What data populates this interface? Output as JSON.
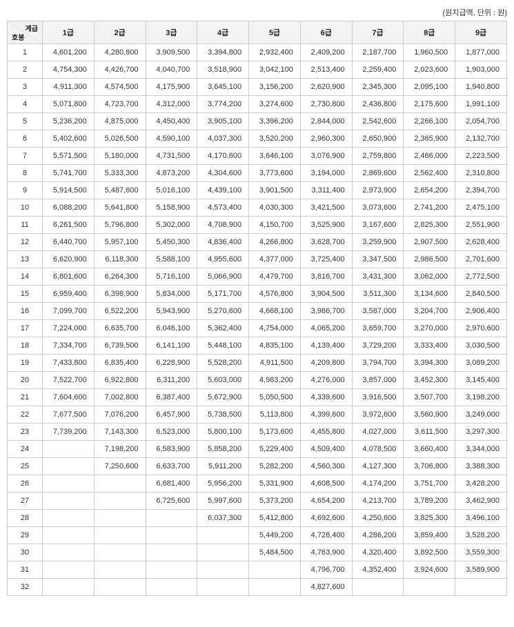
{
  "caption": "(원지급액, 단위 : 원)",
  "diag_header": {
    "top": "계급",
    "bottom": "호봉"
  },
  "columns": [
    "1급",
    "2급",
    "3급",
    "4급",
    "5급",
    "6급",
    "7급",
    "8급",
    "9급"
  ],
  "rows": [
    {
      "step": "1",
      "v": [
        "4,601,200",
        "4,280,800",
        "3,909,500",
        "3,394,800",
        "2,932,400",
        "2,409,200",
        "2,187,700",
        "1,960,500",
        "1,877,000"
      ]
    },
    {
      "step": "2",
      "v": [
        "4,754,300",
        "4,426,700",
        "4,040,700",
        "3,518,900",
        "3,042,100",
        "2,513,400",
        "2,259,400",
        "2,023,600",
        "1,903,000"
      ]
    },
    {
      "step": "3",
      "v": [
        "4,911,300",
        "4,574,500",
        "4,175,900",
        "3,645,100",
        "3,156,200",
        "2,620,900",
        "2,345,300",
        "2,095,100",
        "1,940,800"
      ]
    },
    {
      "step": "4",
      "v": [
        "5,071,800",
        "4,723,700",
        "4,312,000",
        "3,774,200",
        "3,274,600",
        "2,730,800",
        "2,436,800",
        "2,175,600",
        "1,991,100"
      ]
    },
    {
      "step": "5",
      "v": [
        "5,236,200",
        "4,875,000",
        "4,450,400",
        "3,905,100",
        "3,396,200",
        "2,844,000",
        "2,542,600",
        "2,266,100",
        "2,054,700"
      ]
    },
    {
      "step": "6",
      "v": [
        "5,402,600",
        "5,026,500",
        "4,590,100",
        "4,037,300",
        "3,520,200",
        "2,960,300",
        "2,650,900",
        "2,365,900",
        "2,132,700"
      ]
    },
    {
      "step": "7",
      "v": [
        "5,571,500",
        "5,180,000",
        "4,731,500",
        "4,170,600",
        "3,646,100",
        "3,076,900",
        "2,759,800",
        "2,466,000",
        "2,223,500"
      ]
    },
    {
      "step": "8",
      "v": [
        "5,741,700",
        "5,333,300",
        "4,873,200",
        "4,304,600",
        "3,773,600",
        "3,194,000",
        "2,869,600",
        "2,562,400",
        "2,310,800"
      ]
    },
    {
      "step": "9",
      "v": [
        "5,914,500",
        "5,487,600",
        "5,016,100",
        "4,439,100",
        "3,901,500",
        "3,311,400",
        "2,973,900",
        "2,654,200",
        "2,394,700"
      ]
    },
    {
      "step": "10",
      "v": [
        "6,088,200",
        "5,641,800",
        "5,158,900",
        "4,573,400",
        "4,030,300",
        "3,421,500",
        "3,073,600",
        "2,741,200",
        "2,475,100"
      ]
    },
    {
      "step": "11",
      "v": [
        "6,261,500",
        "5,796,800",
        "5,302,000",
        "4,708,900",
        "4,150,700",
        "3,525,900",
        "3,167,600",
        "2,825,300",
        "2,551,900"
      ]
    },
    {
      "step": "12",
      "v": [
        "6,440,700",
        "5,957,100",
        "5,450,300",
        "4,836,400",
        "4,266,800",
        "3,628,700",
        "3,259,900",
        "2,907,500",
        "2,628,400"
      ]
    },
    {
      "step": "13",
      "v": [
        "6,620,900",
        "6,118,300",
        "5,588,100",
        "4,955,600",
        "4,377,000",
        "3,725,400",
        "3,347,500",
        "2,986,500",
        "2,701,600"
      ]
    },
    {
      "step": "14",
      "v": [
        "6,801,600",
        "6,264,300",
        "5,716,100",
        "5,066,900",
        "4,479,700",
        "3,816,700",
        "3,431,300",
        "3,062,000",
        "2,772,500"
      ]
    },
    {
      "step": "15",
      "v": [
        "6,959,400",
        "6,398,900",
        "5,834,000",
        "5,171,700",
        "4,576,800",
        "3,904,500",
        "3,511,300",
        "3,134,600",
        "2,840,500"
      ]
    },
    {
      "step": "16",
      "v": [
        "7,099,700",
        "6,522,200",
        "5,943,900",
        "5,270,600",
        "4,668,100",
        "3,986,700",
        "3,587,000",
        "3,204,700",
        "2,906,400"
      ]
    },
    {
      "step": "17",
      "v": [
        "7,224,000",
        "6,635,700",
        "6,046,100",
        "5,362,400",
        "4,754,000",
        "4,065,200",
        "3,659,700",
        "3,270,000",
        "2,970,600"
      ]
    },
    {
      "step": "18",
      "v": [
        "7,334,700",
        "6,739,500",
        "6,141,100",
        "5,448,100",
        "4,835,100",
        "4,139,400",
        "3,729,200",
        "3,333,400",
        "3,030,500"
      ]
    },
    {
      "step": "19",
      "v": [
        "7,433,800",
        "6,835,400",
        "6,228,900",
        "5,528,200",
        "4,911,500",
        "4,209,800",
        "3,794,700",
        "3,394,300",
        "3,089,200"
      ]
    },
    {
      "step": "20",
      "v": [
        "7,522,700",
        "6,922,800",
        "6,311,200",
        "5,603,000",
        "4,983,200",
        "4,276,000",
        "3,857,000",
        "3,452,300",
        "3,145,400"
      ]
    },
    {
      "step": "21",
      "v": [
        "7,604,600",
        "7,002,800",
        "6,387,400",
        "5,672,900",
        "5,050,500",
        "4,339,600",
        "3,916,500",
        "3,507,700",
        "3,198,200"
      ]
    },
    {
      "step": "22",
      "v": [
        "7,677,500",
        "7,076,200",
        "6,457,900",
        "5,738,500",
        "5,113,800",
        "4,399,600",
        "3,972,600",
        "3,560,900",
        "3,249,000"
      ]
    },
    {
      "step": "23",
      "v": [
        "7,739,200",
        "7,143,300",
        "6,523,000",
        "5,800,100",
        "5,173,600",
        "4,455,800",
        "4,027,000",
        "3,611,500",
        "3,297,300"
      ]
    },
    {
      "step": "24",
      "v": [
        "",
        "7,198,200",
        "6,583,900",
        "5,858,200",
        "5,229,400",
        "4,509,400",
        "4,078,500",
        "3,660,400",
        "3,344,000"
      ]
    },
    {
      "step": "25",
      "v": [
        "",
        "7,250,600",
        "6,633,700",
        "5,911,200",
        "5,282,200",
        "4,560,300",
        "4,127,300",
        "3,706,800",
        "3,388,300"
      ]
    },
    {
      "step": "26",
      "v": [
        "",
        "",
        "6,681,400",
        "5,956,200",
        "5,331,900",
        "4,608,500",
        "4,174,200",
        "3,751,700",
        "3,428,200"
      ]
    },
    {
      "step": "27",
      "v": [
        "",
        "",
        "6,725,600",
        "5,997,600",
        "5,373,200",
        "4,654,200",
        "4,213,700",
        "3,789,200",
        "3,462,900"
      ]
    },
    {
      "step": "28",
      "v": [
        "",
        "",
        "",
        "6,037,300",
        "5,412,800",
        "4,692,600",
        "4,250,600",
        "3,825,300",
        "3,496,100"
      ]
    },
    {
      "step": "29",
      "v": [
        "",
        "",
        "",
        "",
        "5,449,200",
        "4,728,400",
        "4,286,200",
        "3,859,400",
        "3,528,200"
      ]
    },
    {
      "step": "30",
      "v": [
        "",
        "",
        "",
        "",
        "5,484,500",
        "4,763,900",
        "4,320,400",
        "3,892,500",
        "3,559,300"
      ]
    },
    {
      "step": "31",
      "v": [
        "",
        "",
        "",
        "",
        "",
        "4,796,700",
        "4,352,400",
        "3,924,600",
        "3,589,900"
      ]
    },
    {
      "step": "32",
      "v": [
        "",
        "",
        "",
        "",
        "",
        "4,827,600",
        "",
        "",
        ""
      ]
    }
  ]
}
